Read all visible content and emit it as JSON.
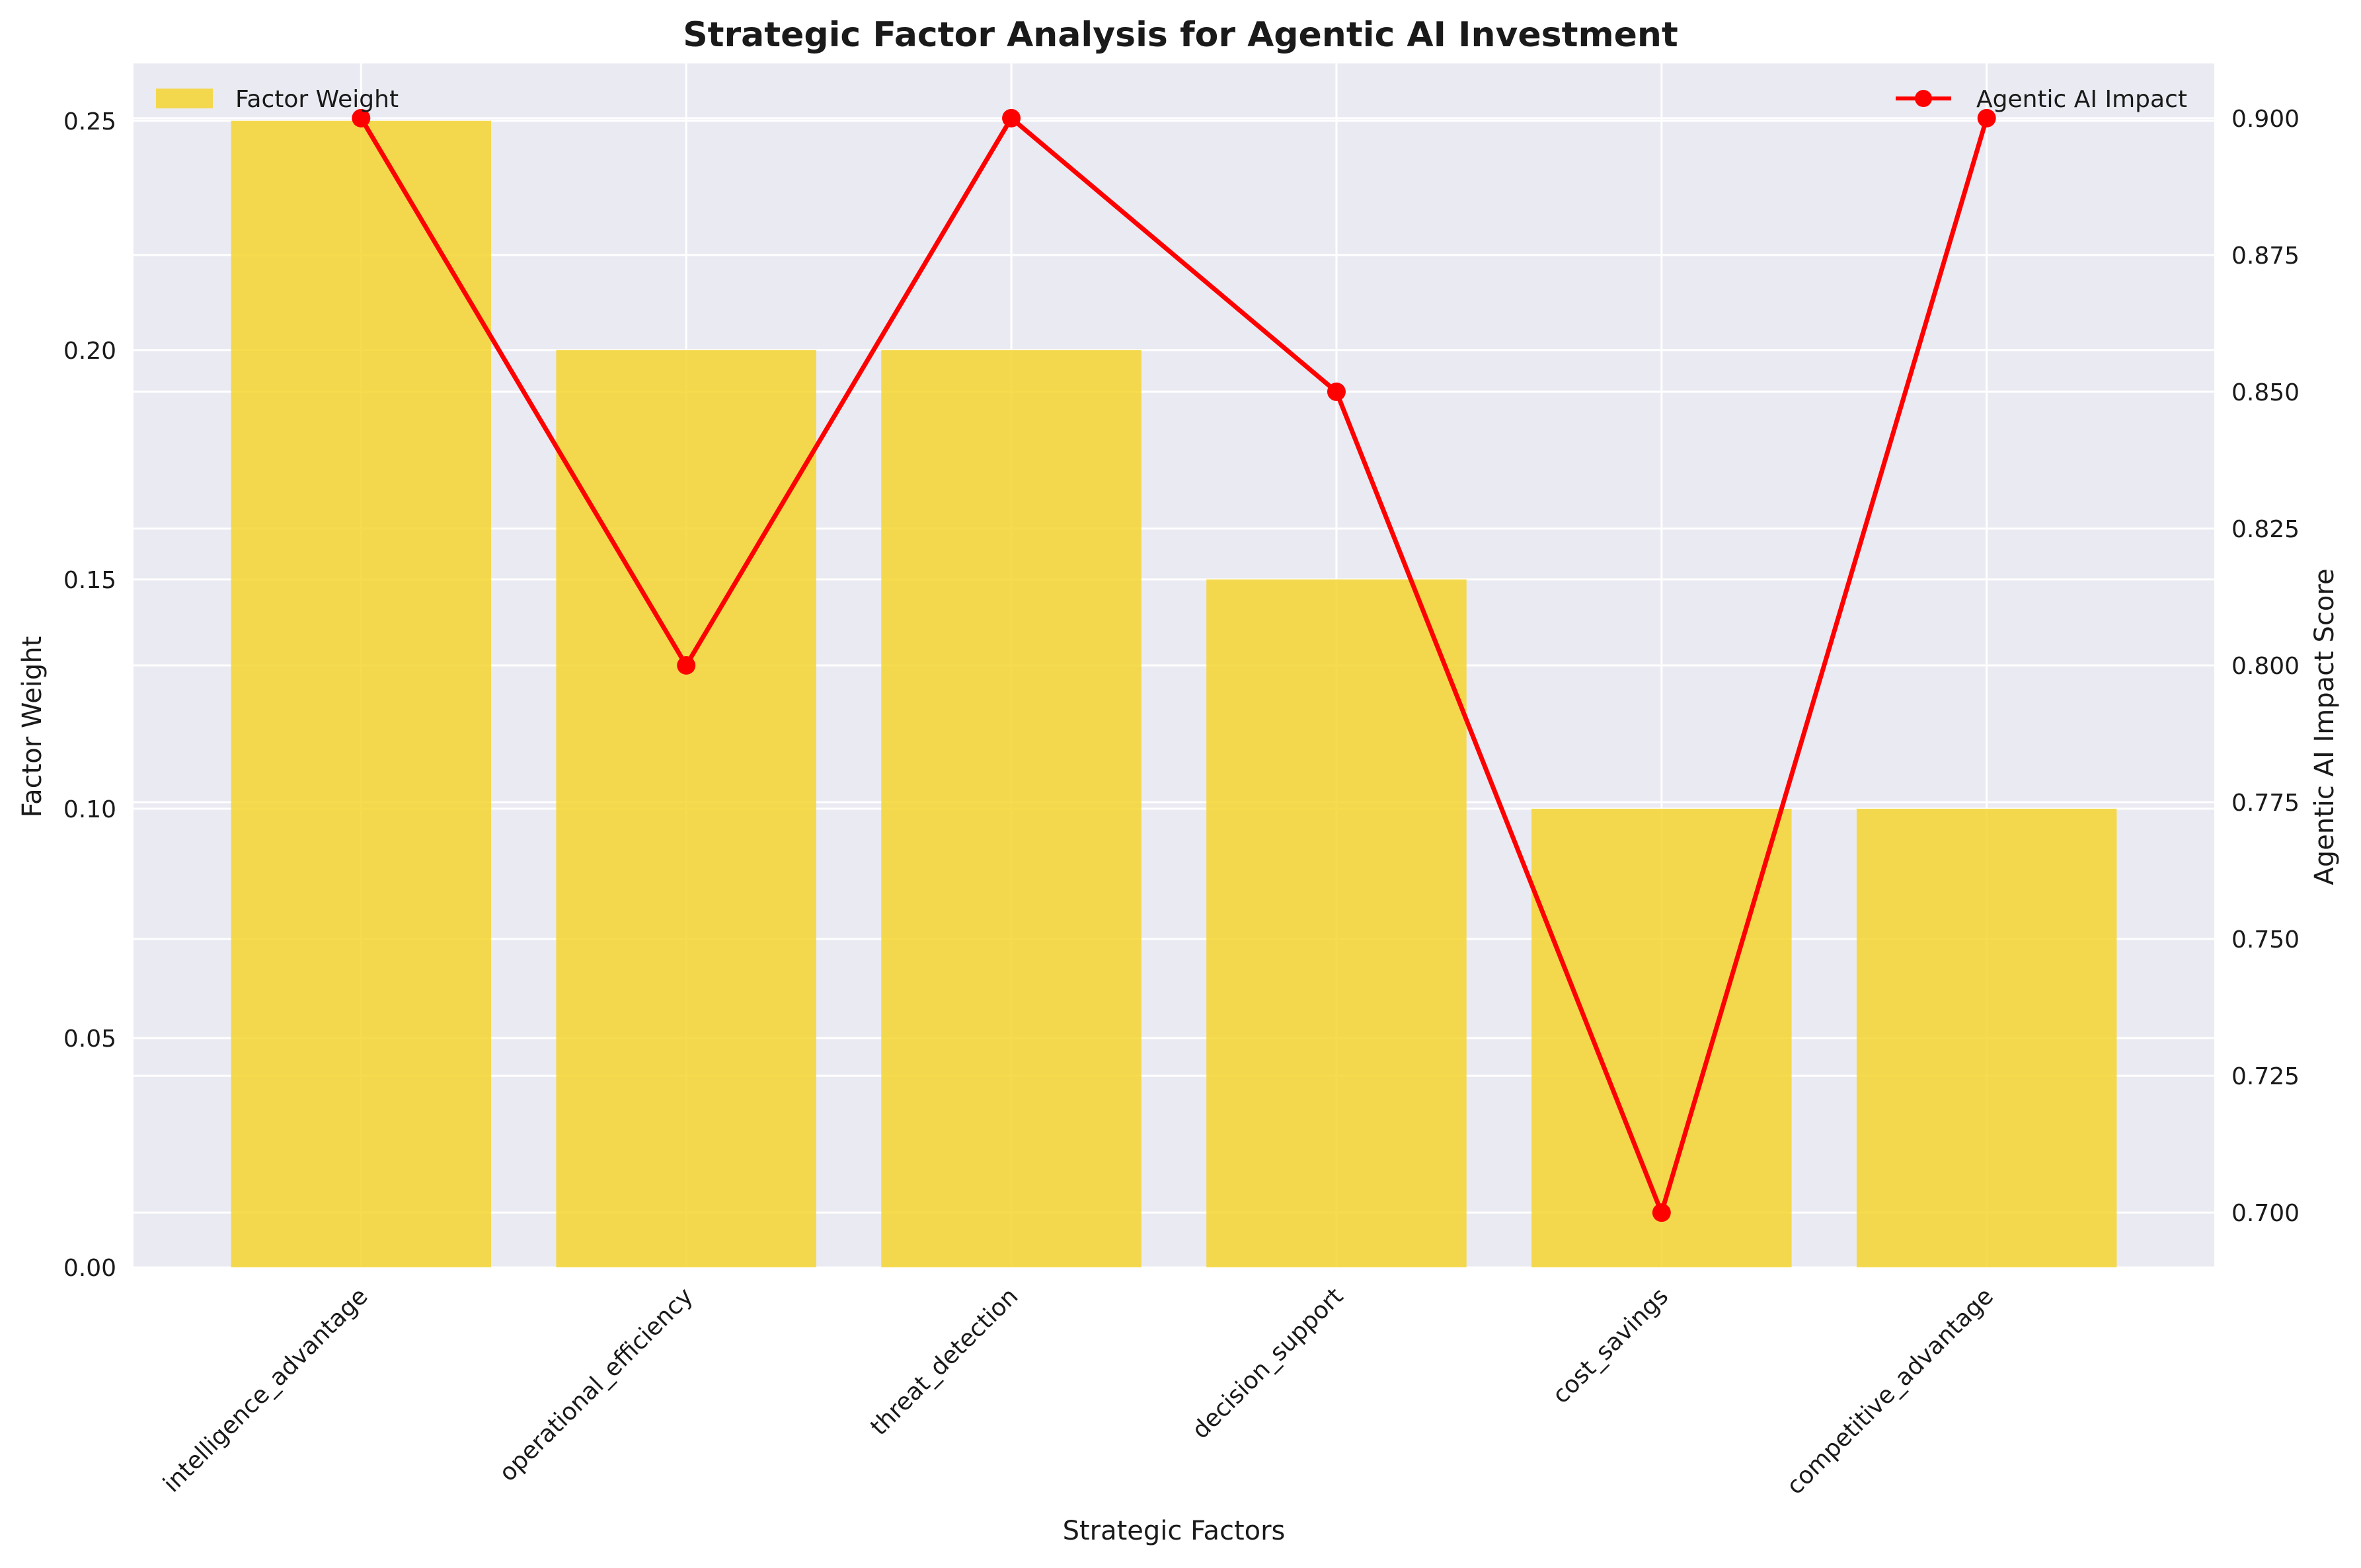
{
  "chart_data": {
    "type": "bar",
    "title": "Strategic Factor Analysis for Agentic AI Investment",
    "xlabel": "Strategic Factors",
    "ylabel": "Factor Weight",
    "y2label": "Agentic AI Impact Score",
    "categories": [
      "intelligence_advantage",
      "operational_efficiency",
      "threat_detection",
      "decision_support",
      "cost_savings",
      "competitive_advantage"
    ],
    "series": [
      {
        "name": "Factor Weight",
        "type": "bar",
        "axis": "left",
        "color": "#f5d530",
        "values": [
          0.25,
          0.2,
          0.2,
          0.15,
          0.1,
          0.1
        ]
      },
      {
        "name": "Agentic AI Impact",
        "type": "line",
        "axis": "right",
        "color": "#ff0000",
        "values": [
          0.9,
          0.8,
          0.9,
          0.85,
          0.7,
          0.9
        ]
      }
    ],
    "ylim": [
      0,
      0.2625
    ],
    "y2lim": [
      0.69,
      0.91
    ],
    "yticks": [
      "0.00",
      "0.05",
      "0.10",
      "0.15",
      "0.20",
      "0.25"
    ],
    "y2ticks": [
      "0.700",
      "0.725",
      "0.750",
      "0.775",
      "0.800",
      "0.825",
      "0.850",
      "0.875",
      "0.900"
    ],
    "grid": true,
    "legend_bar_position": "top-left",
    "legend_line_position": "top-right",
    "background": "#eaeaf2"
  }
}
